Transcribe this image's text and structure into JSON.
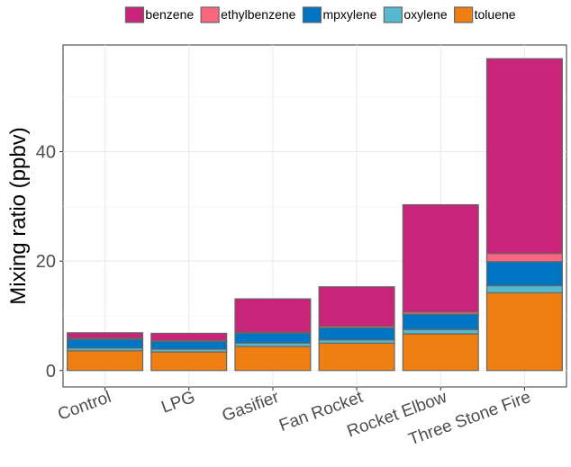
{
  "chart_data": {
    "type": "bar",
    "stacked": true,
    "title": "",
    "xlabel": "",
    "ylabel": "Mixing ratio (ppbv)",
    "ylim": [
      -3,
      59.5
    ],
    "yticks": [
      0,
      20,
      40
    ],
    "grid": true,
    "legend_position": "top",
    "categories": [
      "Control",
      "LPG",
      "Gasifier",
      "Fan Rocket",
      "Rocket Elbow",
      "Three Stone Fire"
    ],
    "series": [
      {
        "name": "toluene",
        "color": "#F07F12",
        "values": [
          3.6,
          3.4,
          4.4,
          5.0,
          6.7,
          14.2
        ]
      },
      {
        "name": "oxylene",
        "color": "#56B9CF",
        "values": [
          0.5,
          0.5,
          0.6,
          0.6,
          0.8,
          1.3
        ]
      },
      {
        "name": "mpxylene",
        "color": "#0075C4",
        "values": [
          1.6,
          1.4,
          1.8,
          2.2,
          2.8,
          4.4
        ]
      },
      {
        "name": "ethylbenzene",
        "color": "#F8677D",
        "values": [
          0.2,
          0.2,
          0.2,
          0.3,
          0.4,
          1.5
        ]
      },
      {
        "name": "benzene",
        "color": "#C9237A",
        "values": [
          1.0,
          1.3,
          6.1,
          7.2,
          19.6,
          35.6
        ]
      }
    ],
    "legend_order": [
      "benzene",
      "ethylbenzene",
      "mpxylene",
      "oxylene",
      "toluene"
    ]
  }
}
